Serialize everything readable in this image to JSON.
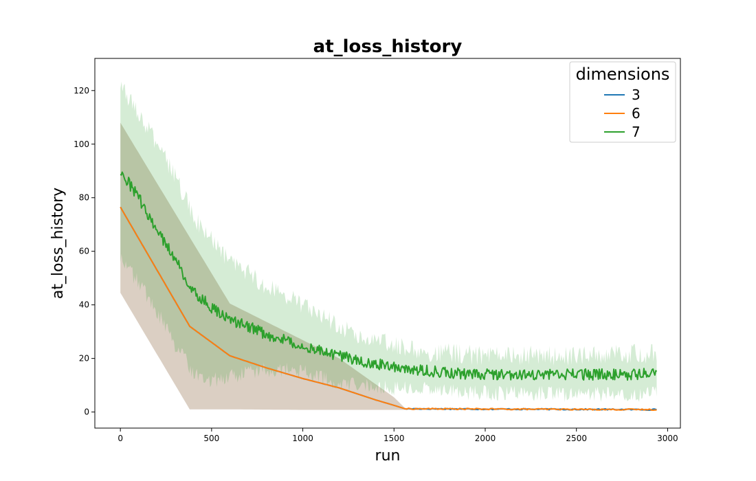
{
  "chart_data": {
    "type": "line",
    "title": "at_loss_history",
    "xlabel": "run",
    "ylabel": "at_loss_history",
    "xlim": [
      -140,
      3070
    ],
    "ylim": [
      -6,
      132
    ],
    "xticks": [
      0,
      500,
      1000,
      1500,
      2000,
      2500,
      3000
    ],
    "yticks": [
      0,
      20,
      40,
      60,
      80,
      100,
      120
    ],
    "grid": false,
    "legend": {
      "title": "dimensions",
      "placement": "top-right"
    },
    "colors": {
      "3": "#1f77b4",
      "6": "#ff7f0e",
      "7": "#2ca02c"
    },
    "series": [
      {
        "name": "3",
        "color": "#1f77b4",
        "mean_points": [
          [
            0,
            76.5
          ],
          [
            380,
            32
          ],
          [
            600,
            21
          ],
          [
            800,
            16.5
          ],
          [
            1000,
            12.5
          ],
          [
            1200,
            9
          ],
          [
            1400,
            4.5
          ],
          [
            1500,
            2.5
          ],
          [
            1560,
            1.2
          ],
          [
            1700,
            1.2
          ],
          [
            2000,
            1.1
          ],
          [
            2500,
            1.0
          ],
          [
            2940,
            0.9
          ]
        ],
        "band_lower": [
          [
            0,
            44.5
          ],
          [
            380,
            1
          ],
          [
            600,
            1
          ],
          [
            1000,
            0.8
          ],
          [
            1500,
            0.8
          ],
          [
            2000,
            0.8
          ],
          [
            2940,
            0.7
          ]
        ],
        "band_upper": [
          [
            0,
            108
          ],
          [
            600,
            40.5
          ],
          [
            1200,
            20
          ],
          [
            1500,
            5.5
          ],
          [
            1560,
            1.5
          ],
          [
            2000,
            1.4
          ],
          [
            2940,
            1.2
          ]
        ]
      },
      {
        "name": "6",
        "color": "#ff7f0e",
        "mean_points": [
          [
            0,
            76.5
          ],
          [
            380,
            32
          ],
          [
            600,
            21
          ],
          [
            800,
            16.5
          ],
          [
            1000,
            12.5
          ],
          [
            1200,
            9
          ],
          [
            1400,
            4.5
          ],
          [
            1500,
            2.5
          ],
          [
            1560,
            1.2
          ],
          [
            1700,
            1.2
          ],
          [
            2000,
            1.1
          ],
          [
            2500,
            1.0
          ],
          [
            2940,
            0.9
          ]
        ],
        "band_lower": [
          [
            0,
            44.5
          ],
          [
            380,
            1
          ],
          [
            600,
            1
          ],
          [
            1000,
            0.8
          ],
          [
            1500,
            0.8
          ],
          [
            2000,
            0.8
          ],
          [
            2940,
            0.7
          ]
        ],
        "band_upper": [
          [
            0,
            108
          ],
          [
            600,
            40.5
          ],
          [
            1200,
            20
          ],
          [
            1500,
            5.5
          ],
          [
            1560,
            1.5
          ],
          [
            2000,
            1.4
          ],
          [
            2940,
            1.2
          ]
        ]
      },
      {
        "name": "7",
        "color": "#2ca02c",
        "mean_points": [
          [
            0,
            90
          ],
          [
            100,
            80
          ],
          [
            200,
            68
          ],
          [
            300,
            57
          ],
          [
            400,
            45
          ],
          [
            500,
            39
          ],
          [
            600,
            34
          ],
          [
            700,
            32
          ],
          [
            800,
            29
          ],
          [
            900,
            27
          ],
          [
            1000,
            25
          ],
          [
            1100,
            23
          ],
          [
            1200,
            21
          ],
          [
            1300,
            19.5
          ],
          [
            1400,
            18
          ],
          [
            1500,
            17
          ],
          [
            1600,
            16
          ],
          [
            1800,
            14.5
          ],
          [
            2000,
            14
          ],
          [
            2200,
            14
          ],
          [
            2500,
            14
          ],
          [
            2800,
            14
          ],
          [
            2940,
            14.5
          ]
        ],
        "band_lower": [
          [
            0,
            58
          ],
          [
            100,
            48
          ],
          [
            200,
            38
          ],
          [
            300,
            25
          ],
          [
            400,
            15
          ],
          [
            500,
            12
          ],
          [
            600,
            13
          ],
          [
            700,
            15
          ],
          [
            800,
            16
          ],
          [
            900,
            15.5
          ],
          [
            1000,
            15
          ],
          [
            1100,
            13
          ],
          [
            1200,
            11
          ],
          [
            1300,
            10
          ],
          [
            1400,
            9.5
          ],
          [
            1500,
            9
          ],
          [
            1600,
            9
          ],
          [
            1800,
            7.5
          ],
          [
            2000,
            7
          ],
          [
            2200,
            7
          ],
          [
            2500,
            6.5
          ],
          [
            2800,
            6.5
          ],
          [
            2940,
            7
          ]
        ],
        "band_upper": [
          [
            0,
            122
          ],
          [
            100,
            112
          ],
          [
            200,
            100
          ],
          [
            300,
            88
          ],
          [
            400,
            73
          ],
          [
            500,
            64
          ],
          [
            600,
            56
          ],
          [
            700,
            52
          ],
          [
            800,
            47
          ],
          [
            900,
            44
          ],
          [
            1000,
            40
          ],
          [
            1100,
            36
          ],
          [
            1200,
            32
          ],
          [
            1300,
            29
          ],
          [
            1400,
            27
          ],
          [
            1500,
            25
          ],
          [
            1600,
            23
          ],
          [
            1800,
            22
          ],
          [
            2000,
            21
          ],
          [
            2200,
            21
          ],
          [
            2500,
            21
          ],
          [
            2800,
            21.5
          ],
          [
            2940,
            22
          ]
        ]
      }
    ]
  }
}
